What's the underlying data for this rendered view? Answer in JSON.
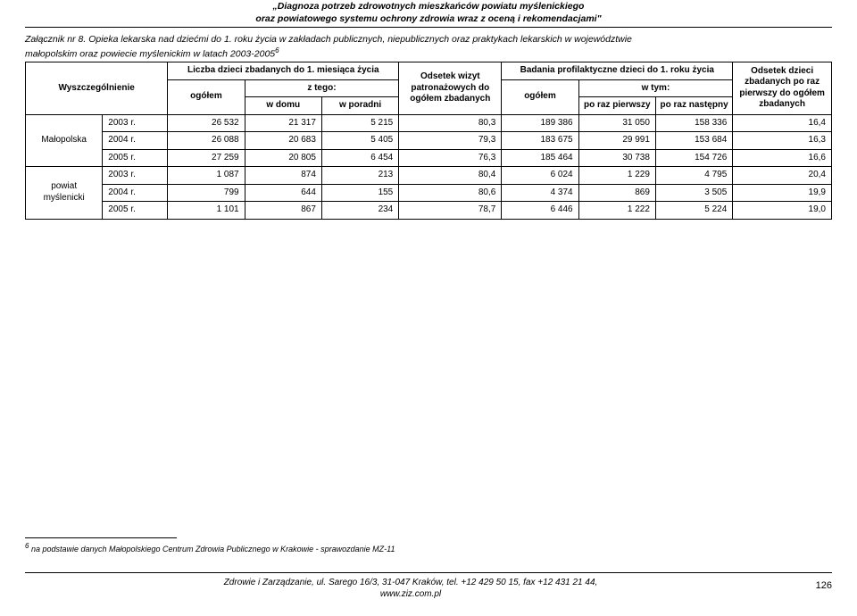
{
  "doc_title_line1": "„Diagnoza potrzeb zdrowotnych mieszkańców powiatu myślenickiego",
  "doc_title_line2": "oraz powiatowego systemu ochrony zdrowia wraz z oceną i rekomendacjami\"",
  "attachment_label": "Załącznik nr 8.",
  "attachment_title_line1": " Opieka lekarska nad dziećmi do 1. roku życia w zakładach publicznych, niepublicznych oraz praktykach lekarskich w województwie",
  "attachment_title_line2": "małopolskim oraz powiecie myślenickim w latach 2003-2005",
  "sup6": "6",
  "headers": {
    "wyszczegolnienie": "Wyszczególnienie",
    "liczba_dzieci": "Liczba dzieci zbadanych do 1. miesiąca życia",
    "ogolem": "ogółem",
    "z_tego": "z tego:",
    "w_domu": "w domu",
    "w_poradni": "w poradni",
    "odsetek_wizyt": "Odsetek wizyt patronażowych do ogółem zbadanych",
    "badania_prof": "Badania profilaktyczne dzieci do 1. roku życia",
    "w_tym": "w tym:",
    "po_raz_pierwszy": "po raz pierwszy",
    "po_raz_nastepny": "po raz następny",
    "odsetek_dzieci": "Odsetek dzieci zbadanych po raz pierwszy do ogółem zbadanych"
  },
  "groups": [
    "Małopolska",
    "powiat myślenicki"
  ],
  "rows": [
    [
      "2003 r.",
      "26 532",
      "21 317",
      "5 215",
      "80,3",
      "189 386",
      "31 050",
      "158 336",
      "16,4"
    ],
    [
      "2004 r.",
      "26 088",
      "20 683",
      "5 405",
      "79,3",
      "183 675",
      "29 991",
      "153 684",
      "16,3"
    ],
    [
      "2005 r.",
      "27 259",
      "20 805",
      "6 454",
      "76,3",
      "185 464",
      "30 738",
      "154 726",
      "16,6"
    ],
    [
      "2003 r.",
      "1 087",
      "874",
      "213",
      "80,4",
      "6 024",
      "1 229",
      "4 795",
      "20,4"
    ],
    [
      "2004 r.",
      "799",
      "644",
      "155",
      "80,6",
      "4 374",
      "869",
      "3 505",
      "19,9"
    ],
    [
      "2005 r.",
      "1 101",
      "867",
      "234",
      "78,7",
      "6 446",
      "1 222",
      "5 224",
      "19,0"
    ]
  ],
  "footnote": " na podstawie danych Małopolskiego Centrum Zdrowia Publicznego w Krakowie - sprawozdanie MZ-11",
  "footer_line1": "Zdrowie i Zarządzanie, ul. Sarego 16/3, 31-047 Kraków, tel. +12 429 50 15, fax +12 431 21 44,",
  "footer_line2": "www.ziz.com.pl",
  "page_number": "126",
  "col_widths": {
    "group": "78",
    "year": "66",
    "ogolem1": "78",
    "wdomu": "78",
    "wporadni": "78",
    "odsetek1": "104",
    "ogolem2": "78",
    "poraz1": "78",
    "poraz2": "78",
    "odsetek2": "100"
  }
}
